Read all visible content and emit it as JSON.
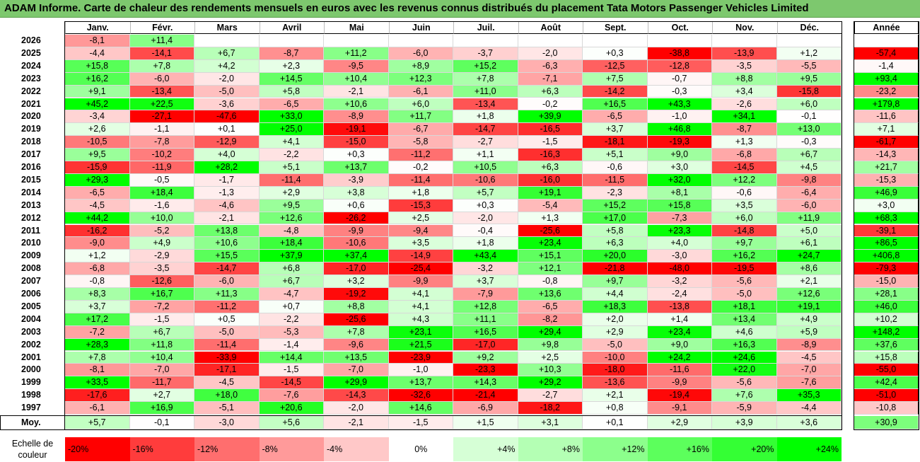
{
  "title": "ADAM Informe. Carte de chaleur des rendements mensuels en euros avec les revenus connus distribués du placement Tata Motors Passenger Vehicles Limited",
  "chart_data": {
    "type": "heatmap",
    "columns": [
      "Janv.",
      "Févr.",
      "Mars",
      "Avril",
      "Mai",
      "Juin",
      "Juil.",
      "Août",
      "Sept.",
      "Oct.",
      "Nov.",
      "Déc."
    ],
    "year_column": "Année",
    "average_label": "Moy.",
    "rows": [
      {
        "year": "2026",
        "values": [
          "-8,1",
          "+11,4",
          "",
          "",
          "",
          "",
          "",
          "",
          "",
          "",
          "",
          ""
        ],
        "annual": ""
      },
      {
        "year": "2025",
        "values": [
          "-4,4",
          "-14,1",
          "+6,7",
          "-8,7",
          "+11,2",
          "-6,0",
          "-3,7",
          "-2,0",
          "+0,3",
          "-38,8",
          "-13,9",
          "+1,2"
        ],
        "annual": "-57,4"
      },
      {
        "year": "2024",
        "values": [
          "+15,8",
          "+7,8",
          "+4,2",
          "+2,3",
          "-9,5",
          "+8,9",
          "+15,2",
          "-6,3",
          "-12,5",
          "-12,8",
          "-3,5",
          "-5,5"
        ],
        "annual": "-1,4"
      },
      {
        "year": "2023",
        "values": [
          "+16,2",
          "-6,0",
          "-2,0",
          "+14,5",
          "+10,4",
          "+12,3",
          "+7,8",
          "-7,1",
          "+7,5",
          "-0,7",
          "+8,8",
          "+9,5"
        ],
        "annual": "+93,4"
      },
      {
        "year": "2022",
        "values": [
          "+9,1",
          "-13,4",
          "-5,0",
          "+5,8",
          "-2,1",
          "-6,1",
          "+11,0",
          "+6,3",
          "-14,2",
          "-0,3",
          "+3,4",
          "-15,8"
        ],
        "annual": "-23,2"
      },
      {
        "year": "2021",
        "values": [
          "+45,2",
          "+22,5",
          "-3,6",
          "-6,5",
          "+10,6",
          "+6,0",
          "-13,4",
          "-0,2",
          "+16,5",
          "+43,3",
          "-2,6",
          "+6,0"
        ],
        "annual": "+179,8"
      },
      {
        "year": "2020",
        "values": [
          "-3,4",
          "-27,1",
          "-47,6",
          "+33,0",
          "-8,9",
          "+11,7",
          "+1,8",
          "+39,9",
          "-6,5",
          "-1,0",
          "+34,1",
          "-0,1"
        ],
        "annual": "-11,6"
      },
      {
        "year": "2019",
        "values": [
          "+2,6",
          "-1,1",
          "+0,1",
          "+25,0",
          "-19,1",
          "-6,7",
          "-14,7",
          "-16,5",
          "+3,7",
          "+46,8",
          "-8,7",
          "+13,0"
        ],
        "annual": "+7,1"
      },
      {
        "year": "2018",
        "values": [
          "-10,5",
          "-7,8",
          "-12,9",
          "+4,1",
          "-15,0",
          "-5,8",
          "-2,7",
          "-1,5",
          "-18,1",
          "-19,3",
          "+1,3",
          "-0,3"
        ],
        "annual": "-61,7"
      },
      {
        "year": "2017",
        "values": [
          "+9,5",
          "-10,2",
          "+4,0",
          "-2,2",
          "+0,3",
          "-11,2",
          "+1,1",
          "-16,3",
          "+5,1",
          "+9,0",
          "-6,8",
          "+6,7"
        ],
        "annual": "-14,3"
      },
      {
        "year": "2016",
        "values": [
          "-15,9",
          "-11,9",
          "+28,2",
          "+5,1",
          "+13,7",
          "-0,2",
          "+10,5",
          "+6,3",
          "-0,6",
          "+3,0",
          "-14,5",
          "+4,5"
        ],
        "annual": "+21,7"
      },
      {
        "year": "2015",
        "values": [
          "+29,3",
          "-0,5",
          "-1,7",
          "-11,4",
          "-3,9",
          "-11,4",
          "-10,6",
          "-16,0",
          "-11,5",
          "+32,0",
          "+12,2",
          "-9,8"
        ],
        "annual": "-15,3"
      },
      {
        "year": "2014",
        "values": [
          "-6,5",
          "+18,4",
          "-1,3",
          "+2,9",
          "+3,8",
          "+1,8",
          "+5,7",
          "+19,1",
          "-2,3",
          "+8,1",
          "-0,6",
          "-6,4"
        ],
        "annual": "+46,9"
      },
      {
        "year": "2013",
        "values": [
          "-4,5",
          "-1,6",
          "-4,6",
          "+9,5",
          "+0,6",
          "-15,3",
          "+0,3",
          "-5,4",
          "+15,2",
          "+15,8",
          "+3,5",
          "-6,0"
        ],
        "annual": "+3,0"
      },
      {
        "year": "2012",
        "values": [
          "+44,2",
          "+10,0",
          "-2,1",
          "+12,6",
          "-26,2",
          "+2,5",
          "-2,0",
          "+1,3",
          "+17,0",
          "-7,3",
          "+6,0",
          "+11,9"
        ],
        "annual": "+68,3"
      },
      {
        "year": "2011",
        "values": [
          "-16,2",
          "-5,2",
          "+13,8",
          "-4,8",
          "-9,9",
          "-9,4",
          "-0,4",
          "-25,6",
          "+5,8",
          "+23,3",
          "-14,8",
          "+5,0"
        ],
        "annual": "-39,1"
      },
      {
        "year": "2010",
        "values": [
          "-9,0",
          "+4,9",
          "+10,6",
          "+18,4",
          "-10,6",
          "+3,5",
          "+1,8",
          "+23,4",
          "+6,3",
          "+4,0",
          "+9,7",
          "+6,1"
        ],
        "annual": "+86,5"
      },
      {
        "year": "2009",
        "values": [
          "+1,2",
          "-2,9",
          "+15,5",
          "+37,9",
          "+37,4",
          "-14,9",
          "+43,4",
          "+15,1",
          "+20,0",
          "-3,0",
          "+16,2",
          "+24,7"
        ],
        "annual": "+406,8"
      },
      {
        "year": "2008",
        "values": [
          "-6,8",
          "-3,5",
          "-14,7",
          "+6,8",
          "-17,0",
          "-25,4",
          "-3,2",
          "+12,1",
          "-21,8",
          "-48,0",
          "-19,5",
          "+8,6"
        ],
        "annual": "-79,3"
      },
      {
        "year": "2007",
        "values": [
          "-0,8",
          "-12,6",
          "-6,0",
          "+6,7",
          "+3,2",
          "-9,9",
          "+3,7",
          "-0,8",
          "+9,7",
          "-3,2",
          "-5,6",
          "+2,1"
        ],
        "annual": "-15,0"
      },
      {
        "year": "2006",
        "values": [
          "+8,3",
          "+16,7",
          "+11,3",
          "-4,7",
          "-19,2",
          "+4,1",
          "-7,9",
          "+13,6",
          "+4,4",
          "-2,4",
          "-5,0",
          "+12,6"
        ],
        "annual": "+28,1"
      },
      {
        "year": "2005",
        "values": [
          "+3,7",
          "-7,2",
          "-11,2",
          "+0,7",
          "+8,8",
          "+4,1",
          "+12,8",
          "-6,5",
          "+18,3",
          "-13,8",
          "+18,1",
          "+19,1"
        ],
        "annual": "+46,0"
      },
      {
        "year": "2004",
        "values": [
          "+17,2",
          "-1,5",
          "+0,5",
          "-2,2",
          "-25,6",
          "+4,3",
          "+11,1",
          "-8,2",
          "+2,0",
          "+1,4",
          "+13,4",
          "+4,9"
        ],
        "annual": "+10,2"
      },
      {
        "year": "2003",
        "values": [
          "-7,2",
          "+6,7",
          "-5,0",
          "-5,3",
          "+7,8",
          "+23,1",
          "+16,5",
          "+29,4",
          "+2,9",
          "+23,4",
          "+4,6",
          "+5,9"
        ],
        "annual": "+148,2"
      },
      {
        "year": "2002",
        "values": [
          "+28,3",
          "+11,8",
          "-11,4",
          "-1,4",
          "-9,6",
          "+21,5",
          "-17,0",
          "+9,8",
          "-5,0",
          "+9,0",
          "+16,3",
          "-8,9"
        ],
        "annual": "+37,6"
      },
      {
        "year": "2001",
        "values": [
          "+7,8",
          "+10,4",
          "-33,9",
          "+14,4",
          "+13,5",
          "-23,9",
          "+9,2",
          "+2,5",
          "-10,0",
          "+24,2",
          "+24,6",
          "-4,5"
        ],
        "annual": "+15,8"
      },
      {
        "year": "2000",
        "values": [
          "-8,1",
          "-7,0",
          "-17,1",
          "-1,5",
          "-7,0",
          "-1,0",
          "-23,3",
          "+10,3",
          "-18,0",
          "-11,6",
          "+22,0",
          "-7,0"
        ],
        "annual": "-55,0"
      },
      {
        "year": "1999",
        "values": [
          "+33,5",
          "-11,7",
          "-4,5",
          "-14,5",
          "+29,9",
          "+13,7",
          "+14,3",
          "+29,2",
          "-13,6",
          "-9,9",
          "-5,6",
          "-7,6"
        ],
        "annual": "+42,4"
      },
      {
        "year": "1998",
        "values": [
          "-17,6",
          "+2,7",
          "+18,0",
          "-7,6",
          "-14,3",
          "-32,6",
          "-21,4",
          "-2,7",
          "+2,1",
          "-19,4",
          "+7,6",
          "+35,3"
        ],
        "annual": "-51,0"
      },
      {
        "year": "1997",
        "values": [
          "-6,1",
          "+16,9",
          "-5,1",
          "+20,6",
          "-2,0",
          "+14,6",
          "-6,9",
          "-18,2",
          "+0,8",
          "-9,1",
          "-5,9",
          "-4,4"
        ],
        "annual": "-10,8"
      }
    ],
    "averages": [
      "+5,7",
      "-0,1",
      "-3,0",
      "+5,6",
      "-2,1",
      "-1,5",
      "+1,5",
      "+3,1",
      "+0,1",
      "+2,9",
      "+3,9",
      "+3,6"
    ],
    "average_annual": "+30,9",
    "legend": {
      "label_line1": "Echelle de",
      "label_line2": "couleur",
      "stops": [
        "-20%",
        "-16%",
        "-12%",
        "-8%",
        "-4%",
        "0%",
        "+4%",
        "+8%",
        "+12%",
        "+16%",
        "+20%",
        "+24%"
      ],
      "colors": [
        "#ff0000",
        "#ff3c3c",
        "#ff6e6e",
        "#ff9a9a",
        "#ffc8c8",
        "#ffffff",
        "#d6ffd6",
        "#b4ffb4",
        "#8cff8c",
        "#5cff5c",
        "#34ff34",
        "#00ff00"
      ]
    }
  }
}
